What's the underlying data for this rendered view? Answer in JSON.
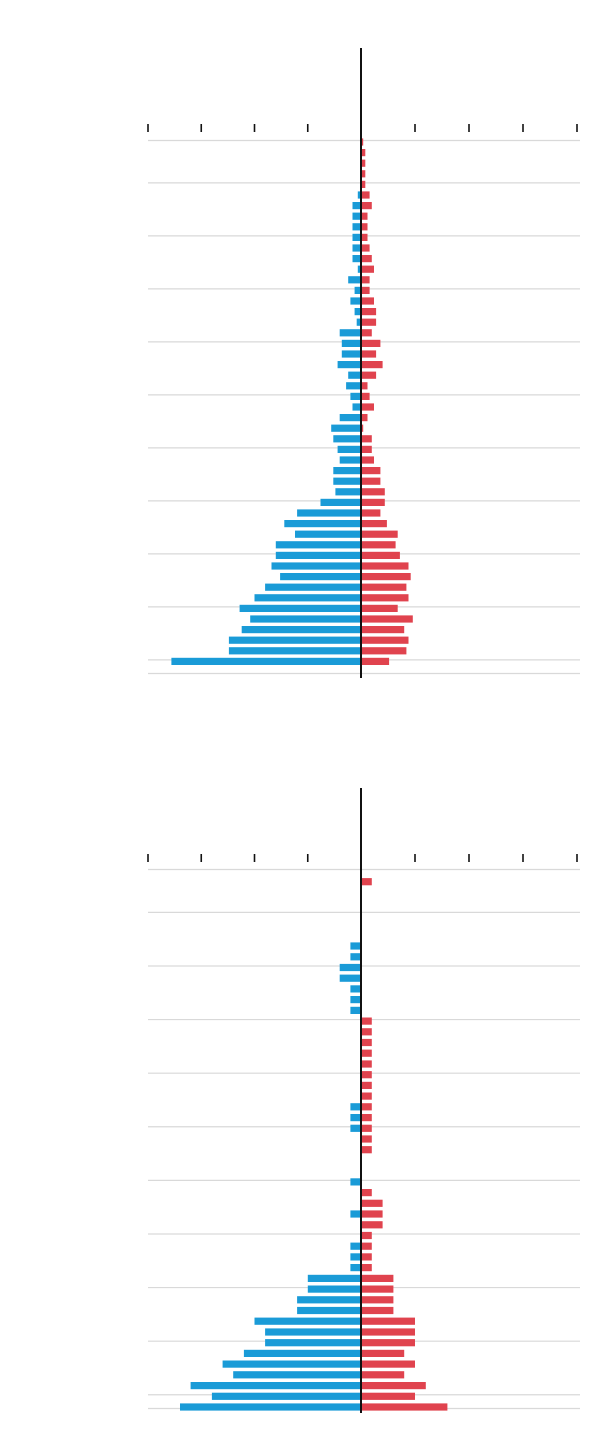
{
  "colors": {
    "left": "#1a9bd7",
    "right": "#e0434e",
    "axis": "#111111",
    "grid": "#d9d9d9"
  },
  "chart_data": [
    {
      "type": "bar",
      "orientation": "horizontal-diverging",
      "xlim": [
        -200,
        200
      ],
      "major_tick_step": 50,
      "rows": 51,
      "series": [
        {
          "side": "left",
          "values": [
            0,
            0,
            0,
            0,
            0,
            3,
            8,
            8,
            8,
            8,
            8,
            8,
            3,
            12,
            6,
            10,
            6,
            4,
            20,
            18,
            18,
            22,
            12,
            14,
            10,
            8,
            20,
            28,
            26,
            22,
            20,
            26,
            26,
            24,
            38,
            60,
            72,
            62,
            80,
            80,
            84,
            76,
            90,
            100,
            114,
            104,
            112,
            124,
            124,
            178,
            0
          ]
        },
        {
          "side": "right",
          "values": [
            2,
            4,
            4,
            4,
            4,
            8,
            10,
            6,
            6,
            6,
            8,
            10,
            12,
            8,
            8,
            12,
            14,
            14,
            10,
            18,
            14,
            20,
            14,
            6,
            8,
            12,
            6,
            2,
            10,
            10,
            12,
            18,
            18,
            22,
            22,
            18,
            24,
            34,
            32,
            36,
            44,
            46,
            42,
            44,
            34,
            48,
            40,
            44,
            42,
            26,
            0
          ]
        }
      ]
    },
    {
      "type": "bar",
      "orientation": "horizontal-diverging",
      "xlim": [
        -200,
        200
      ],
      "major_tick_step": 50,
      "rows": 51,
      "series": [
        {
          "side": "left",
          "values": [
            0,
            0,
            0,
            0,
            0,
            0,
            0,
            10,
            10,
            20,
            20,
            10,
            10,
            10,
            0,
            0,
            0,
            0,
            0,
            0,
            0,
            0,
            10,
            10,
            10,
            0,
            0,
            0,
            0,
            10,
            0,
            0,
            10,
            0,
            0,
            10,
            10,
            10,
            50,
            50,
            60,
            60,
            100,
            90,
            90,
            110,
            130,
            120,
            160,
            140,
            170
          ]
        },
        {
          "side": "right",
          "values": [
            0,
            10,
            0,
            0,
            0,
            0,
            0,
            0,
            0,
            0,
            0,
            0,
            0,
            0,
            10,
            10,
            10,
            10,
            10,
            10,
            10,
            10,
            10,
            10,
            10,
            10,
            10,
            0,
            0,
            0,
            10,
            20,
            20,
            20,
            10,
            10,
            10,
            10,
            30,
            30,
            30,
            30,
            50,
            50,
            50,
            40,
            50,
            40,
            60,
            50,
            80
          ]
        }
      ]
    }
  ]
}
